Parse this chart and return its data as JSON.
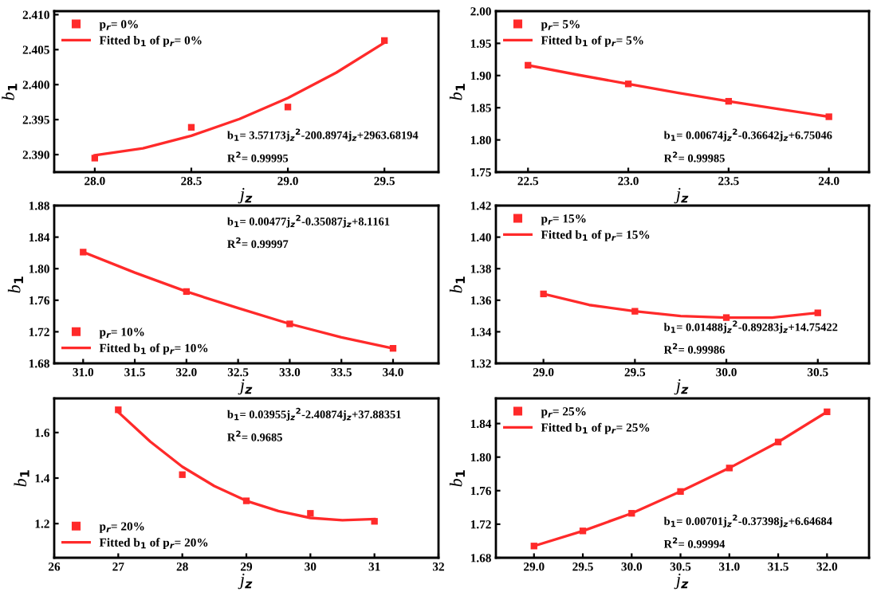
{
  "chart_data": [
    {
      "type": "scatter",
      "xlabel": "j$_{z}$",
      "ylabel": "b$_{1}$",
      "xlim": [
        27.79,
        29.78
      ],
      "ylim": [
        2.3875,
        2.4105
      ],
      "xticks": [
        {
          "value": 28.0,
          "label": "28.0"
        },
        {
          "value": 28.5,
          "label": "28.5"
        },
        {
          "value": 29.0,
          "label": "29.0"
        },
        {
          "value": 29.5,
          "label": "29.5"
        }
      ],
      "yticks": [
        {
          "value": 2.39,
          "label": "2.390"
        },
        {
          "value": 2.395,
          "label": "2.395"
        },
        {
          "value": 2.4,
          "label": "2.400"
        },
        {
          "value": 2.405,
          "label": "2.405"
        },
        {
          "value": 2.41,
          "label": "2.410"
        }
      ],
      "grid": false,
      "legend": "top left",
      "series": [
        {
          "name": "p$_{r}$= 0%",
          "marker": "square",
          "color": "#ff2a2a",
          "x": [
            28.0,
            28.5,
            29.0,
            29.5
          ],
          "values": [
            2.3895,
            2.3939,
            2.3968,
            2.4063
          ]
        },
        {
          "name": "Fitted b$_{1}$ of p$_{r}$= 0%",
          "type": "line",
          "marker": "none",
          "line_style": "solid",
          "color": "#ff2a2a",
          "x": [
            28.0,
            28.25,
            28.5,
            28.75,
            29.0,
            29.25,
            29.5
          ],
          "values": [
            2.3899,
            2.3909,
            2.3927,
            2.3951,
            2.3981,
            2.4017,
            2.406
          ]
        }
      ],
      "annotations": [
        "b$_{1}$= 3.57173j$_{z}$$^{2}$-200.8974j$_{z}$+2963.68194",
        "R$^{2}$= 0.99995"
      ]
    },
    {
      "type": "scatter",
      "xlabel": "j$_{z}$",
      "ylabel": "b$_{1}$",
      "xlim": [
        22.34,
        24.2
      ],
      "ylim": [
        1.75,
        2.0
      ],
      "xticks": [
        {
          "value": 22.5,
          "label": "22.5"
        },
        {
          "value": 23.0,
          "label": "23.0"
        },
        {
          "value": 23.5,
          "label": "23.5"
        },
        {
          "value": 24.0,
          "label": "24.0"
        }
      ],
      "yticks": [
        1.75,
        {
          "value": 1.8,
          "label": "1.80"
        },
        1.85,
        {
          "value": 1.9,
          "label": "1.90"
        },
        1.95,
        {
          "value": 2.0,
          "label": "2.00"
        }
      ],
      "grid": false,
      "legend": "top left",
      "series": [
        {
          "name": "p$_{r}$= 5%",
          "marker": "square",
          "color": "#ff2a2a",
          "x": [
            22.5,
            23.0,
            23.5,
            24.0
          ],
          "values": [
            1.916,
            1.887,
            1.86,
            1.836
          ]
        },
        {
          "name": "Fitted b$_{1}$ of p$_{r}$= 5%",
          "type": "line",
          "marker": "none",
          "line_style": "solid",
          "color": "#ff2a2a",
          "x": [
            22.5,
            22.75,
            23.0,
            23.25,
            23.5,
            23.75,
            24.0
          ],
          "values": [
            1.916,
            1.901,
            1.887,
            1.873,
            1.86,
            1.848,
            1.836
          ]
        }
      ],
      "annotations": [
        "b$_{1}$= 0.00674j$_{z}$$^{2}$-0.36642j$_{z}$+6.75046",
        "R$^{2}$= 0.99985"
      ]
    },
    {
      "type": "scatter",
      "xlabel": "j$_{z}$",
      "ylabel": "b$_{1}$",
      "xlim": [
        30.72,
        34.44
      ],
      "ylim": [
        1.68,
        1.88
      ],
      "xticks": [
        {
          "value": 31.0,
          "label": "31.0"
        },
        31.5,
        {
          "value": 32.0,
          "label": "32.0"
        },
        32.5,
        {
          "value": 33.0,
          "label": "33.0"
        },
        33.5,
        {
          "value": 34.0,
          "label": "34.0"
        }
      ],
      "yticks": [
        1.68,
        1.72,
        1.76,
        {
          "value": 1.8,
          "label": "1.80"
        },
        1.84,
        1.88
      ],
      "grid": false,
      "legend": "bottom left",
      "series": [
        {
          "name": "p$_{r}$= 10%",
          "marker": "square",
          "color": "#ff2a2a",
          "x": [
            31.0,
            32.0,
            33.0,
            34.0
          ],
          "values": [
            1.821,
            1.771,
            1.73,
            1.699
          ]
        },
        {
          "name": "Fitted b$_{1}$ of p$_{r}$= 10%",
          "type": "line",
          "marker": "none",
          "line_style": "solid",
          "color": "#ff2a2a",
          "x": [
            31.0,
            31.5,
            32.0,
            32.5,
            33.0,
            33.5,
            34.0
          ],
          "values": [
            1.821,
            1.795,
            1.771,
            1.75,
            1.73,
            1.713,
            1.699
          ]
        }
      ],
      "annotations": [
        "b$_{1}$= 0.00477j$_{z}$$^{2}$-0.35087j$_{z}$+8.1161",
        "R$^{2}$= 0.99997"
      ]
    },
    {
      "type": "scatter",
      "xlabel": "j$_{z}$",
      "ylabel": "b$_{1}$",
      "xlim": [
        28.74,
        30.78
      ],
      "ylim": [
        1.32,
        1.42
      ],
      "xticks": [
        {
          "value": 29.0,
          "label": "29.0"
        },
        29.5,
        {
          "value": 30.0,
          "label": "30.0"
        },
        30.5
      ],
      "yticks": [
        1.32,
        1.34,
        1.36,
        1.38,
        {
          "value": 1.4,
          "label": "1.40"
        },
        1.42
      ],
      "grid": false,
      "legend": "top left",
      "series": [
        {
          "name": "p$_{r}$= 15%",
          "marker": "square",
          "color": "#ff2a2a",
          "x": [
            29.0,
            29.5,
            30.0,
            30.5
          ],
          "values": [
            1.364,
            1.353,
            1.349,
            1.352
          ]
        },
        {
          "name": "Fitted b$_{1}$ of p$_{r}$= 15%",
          "type": "line",
          "marker": "none",
          "line_style": "solid",
          "color": "#ff2a2a",
          "x": [
            29.0,
            29.25,
            29.5,
            29.75,
            30.0,
            30.25,
            30.5
          ],
          "values": [
            1.364,
            1.357,
            1.353,
            1.35,
            1.349,
            1.349,
            1.352
          ]
        }
      ],
      "annotations": [
        "b$_{1}$= 0.01488j$_{z}$$^{2}$-0.89283j$_{z}$+14.75422",
        "R$^{2}$= 0.99986"
      ]
    },
    {
      "type": "scatter",
      "xlabel": "j$_{z}$",
      "ylabel": "b$_{1}$",
      "xlim": [
        26,
        32
      ],
      "ylim": [
        1.05,
        1.75
      ],
      "xticks": [
        26,
        27,
        28,
        29,
        30,
        31,
        32
      ],
      "yticks": [
        1.2,
        1.4,
        1.6
      ],
      "grid": false,
      "legend": "bottom left",
      "series": [
        {
          "name": "p$_{r}$= 20%",
          "marker": "square",
          "color": "#ff2a2a",
          "x": [
            27,
            28,
            29,
            30,
            31
          ],
          "values": [
            1.7,
            1.415,
            1.3,
            1.245,
            1.21
          ]
        },
        {
          "name": "Fitted b$_{1}$ of p$_{r}$= 20%",
          "type": "line",
          "marker": "none",
          "line_style": "solid",
          "color": "#ff2a2a",
          "x": [
            27,
            27.5,
            28,
            28.5,
            29,
            29.5,
            30,
            30.5,
            31
          ],
          "values": [
            1.69,
            1.56,
            1.45,
            1.365,
            1.3,
            1.255,
            1.225,
            1.215,
            1.22
          ]
        }
      ],
      "annotations": [
        "b$_{1}$= 0.03955j$_{z}$$^{2}$-2.40874j$_{z}$+37.88351",
        "R$^{2}$= 0.9685"
      ]
    },
    {
      "type": "scatter",
      "xlabel": "j$_{z}$",
      "ylabel": "b$_{1}$",
      "xlim": [
        28.61,
        32.43
      ],
      "ylim": [
        1.68,
        1.87
      ],
      "xticks": [
        {
          "value": 29.0,
          "label": "29.0"
        },
        29.5,
        {
          "value": 30.0,
          "label": "30.0"
        },
        30.5,
        {
          "value": 31.0,
          "label": "31.0"
        },
        31.5,
        {
          "value": 32.0,
          "label": "32.0"
        }
      ],
      "yticks": [
        1.68,
        1.72,
        1.76,
        {
          "value": 1.8,
          "label": "1.80"
        },
        1.84
      ],
      "grid": false,
      "legend": "top left",
      "series": [
        {
          "name": "p$_{r}$= 25%",
          "marker": "square",
          "color": "#ff2a2a",
          "x": [
            29.0,
            29.5,
            30.0,
            30.5,
            31.0,
            31.5,
            32.0
          ],
          "values": [
            1.694,
            1.712,
            1.733,
            1.759,
            1.787,
            1.818,
            1.854
          ]
        },
        {
          "name": "Fitted b$_{1}$ of p$_{r}$= 25%",
          "type": "line",
          "marker": "none",
          "line_style": "solid",
          "color": "#ff2a2a",
          "x": [
            29.0,
            29.5,
            30.0,
            30.5,
            31.0,
            31.5,
            32.0
          ],
          "values": [
            1.694,
            1.712,
            1.733,
            1.759,
            1.787,
            1.818,
            1.854
          ]
        }
      ],
      "annotations": [
        "b$_{1}$= 0.00701j$_{z}$$^{2}$-0.37398j$_{z}$+6.64684",
        "R$^{2}$= 0.99994"
      ]
    }
  ]
}
